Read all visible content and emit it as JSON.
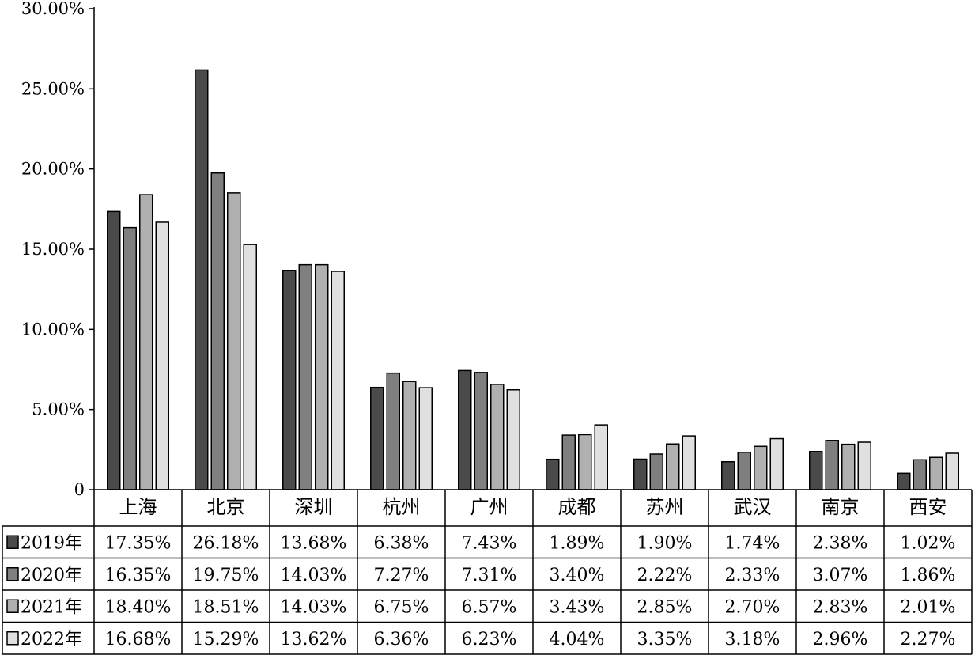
{
  "chart_data": {
    "type": "bar",
    "title": "",
    "xlabel": "",
    "ylabel": "",
    "ylim": [
      0,
      30
    ],
    "yticks": [
      "0",
      "5.00%",
      "10.00%",
      "15.00%",
      "20.00%",
      "25.00%",
      "30.00%"
    ],
    "grid": false,
    "legend": "data-table-left",
    "categories": [
      "上海",
      "北京",
      "深圳",
      "杭州",
      "广州",
      "成都",
      "苏州",
      "武汉",
      "南京",
      "西安"
    ],
    "series": [
      {
        "name": "2019年",
        "color": "#4a4a4a",
        "values": [
          17.35,
          26.18,
          13.68,
          6.38,
          7.43,
          1.89,
          1.9,
          1.74,
          2.38,
          1.02
        ],
        "labels": [
          "17.35%",
          "26.18%",
          "13.68%",
          "6.38%",
          "7.43%",
          "1.89%",
          "1.90%",
          "1.74%",
          "2.38%",
          "1.02%"
        ]
      },
      {
        "name": "2020年",
        "color": "#7f7f7f",
        "values": [
          16.35,
          19.75,
          14.03,
          7.27,
          7.31,
          3.4,
          2.22,
          2.33,
          3.07,
          1.86
        ],
        "labels": [
          "16.35%",
          "19.75%",
          "14.03%",
          "7.27%",
          "7.31%",
          "3.40%",
          "2.22%",
          "2.33%",
          "3.07%",
          "1.86%"
        ]
      },
      {
        "name": "2021年",
        "color": "#b0b0b0",
        "values": [
          18.4,
          18.51,
          14.03,
          6.75,
          6.57,
          3.43,
          2.85,
          2.7,
          2.83,
          2.01
        ],
        "labels": [
          "18.40%",
          "18.51%",
          "14.03%",
          "6.75%",
          "6.57%",
          "3.43%",
          "2.85%",
          "2.70%",
          "2.83%",
          "2.01%"
        ]
      },
      {
        "name": "2022年",
        "color": "#e0e0e0",
        "values": [
          16.68,
          15.29,
          13.62,
          6.36,
          6.23,
          4.04,
          3.35,
          3.18,
          2.96,
          2.27
        ],
        "labels": [
          "16.68%",
          "15.29%",
          "13.62%",
          "6.36%",
          "6.23%",
          "4.04%",
          "3.35%",
          "3.18%",
          "2.96%",
          "2.27%"
        ]
      }
    ]
  }
}
